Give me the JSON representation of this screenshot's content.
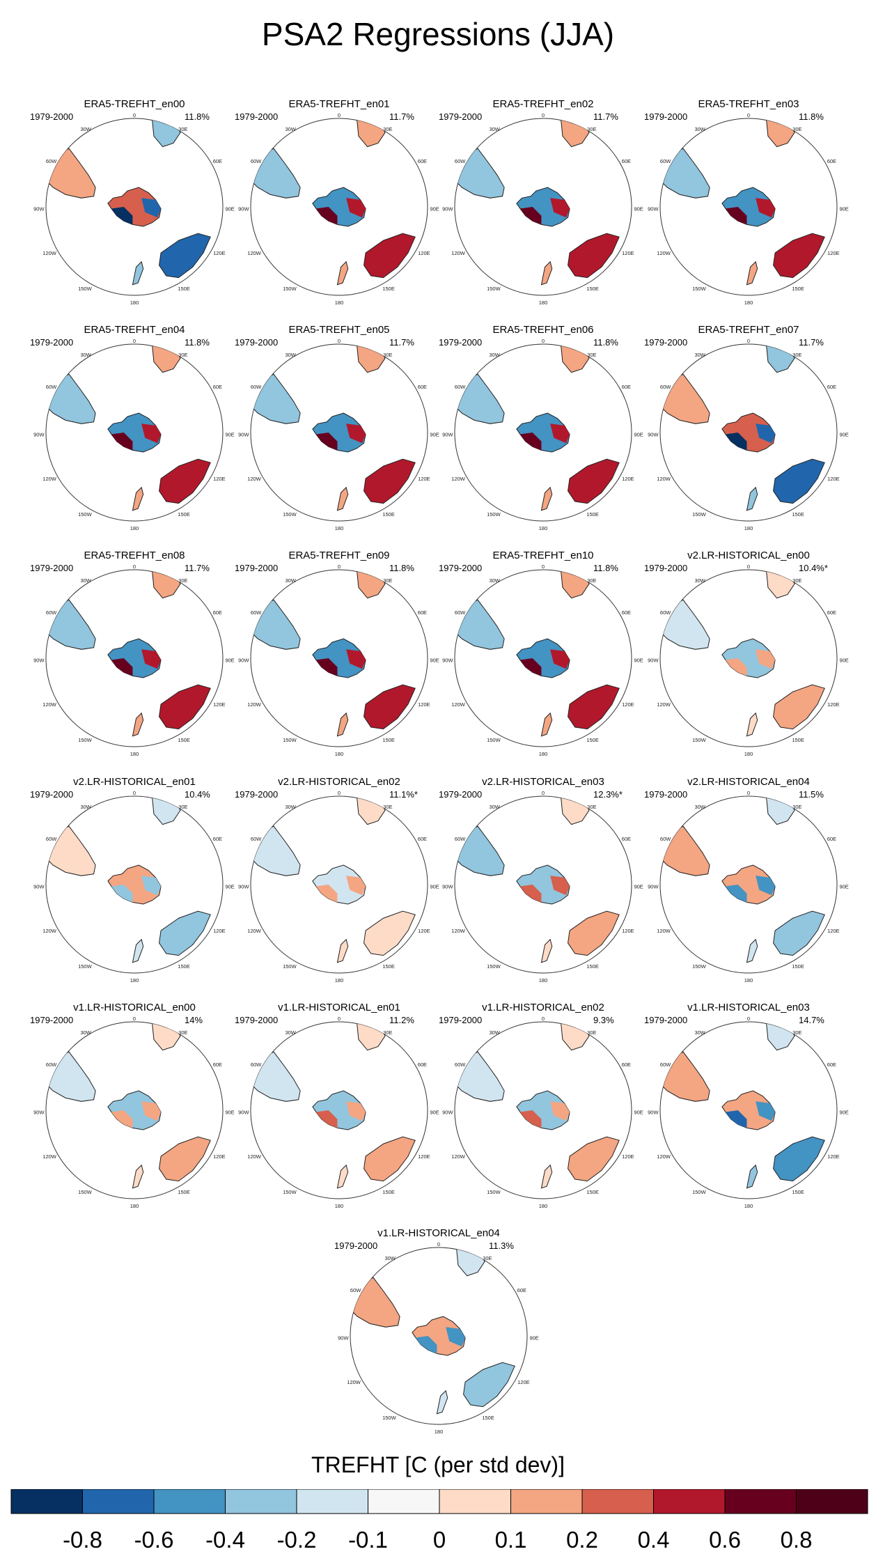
{
  "title": "PSA2 Regressions (JJA)",
  "colors": {
    "land": [
      "#67001f",
      "#b2182b",
      "#d6604d",
      "#f4a582",
      "#fddbc7",
      "#ffffff",
      "#d1e5f0",
      "#92c5de",
      "#4393c3",
      "#2166ac",
      "#053061"
    ],
    "outline": "#222222"
  },
  "map_labels": [
    "0",
    "30E",
    "60E",
    "90E",
    "120E",
    "150E",
    "180",
    "150W",
    "120W",
    "90W",
    "60W",
    "30W"
  ],
  "chart_data": {
    "type": "heatmap",
    "title": "PSA2 Regressions (JJA)",
    "variable_label": "TREFHT [C (per std dev)]",
    "projection": "south polar stereographic",
    "panels": [
      {
        "name": "ERA5-TREFHT_en00",
        "period": "1979-2000",
        "pct": "11.8%",
        "pattern": -1
      },
      {
        "name": "ERA5-TREFHT_en01",
        "period": "1979-2000",
        "pct": "11.7%",
        "pattern": 1
      },
      {
        "name": "ERA5-TREFHT_en02",
        "period": "1979-2000",
        "pct": "11.7%",
        "pattern": 1
      },
      {
        "name": "ERA5-TREFHT_en03",
        "period": "1979-2000",
        "pct": "11.8%",
        "pattern": 1
      },
      {
        "name": "ERA5-TREFHT_en04",
        "period": "1979-2000",
        "pct": "11.8%",
        "pattern": 1
      },
      {
        "name": "ERA5-TREFHT_en05",
        "period": "1979-2000",
        "pct": "11.7%",
        "pattern": 1
      },
      {
        "name": "ERA5-TREFHT_en06",
        "period": "1979-2000",
        "pct": "11.8%",
        "pattern": 1
      },
      {
        "name": "ERA5-TREFHT_en07",
        "period": "1979-2000",
        "pct": "11.7%",
        "pattern": -1
      },
      {
        "name": "ERA5-TREFHT_en08",
        "period": "1979-2000",
        "pct": "11.7%",
        "pattern": 1
      },
      {
        "name": "ERA5-TREFHT_en09",
        "period": "1979-2000",
        "pct": "11.8%",
        "pattern": 1
      },
      {
        "name": "ERA5-TREFHT_en10",
        "period": "1979-2000",
        "pct": "11.8%",
        "pattern": 1
      },
      {
        "name": "v2.LR-HISTORICAL_en00",
        "period": "1979-2000",
        "pct": "10.4%*",
        "pattern": 0.4
      },
      {
        "name": "v2.LR-HISTORICAL_en01",
        "period": "1979-2000",
        "pct": "10.4%",
        "pattern": -0.4
      },
      {
        "name": "v2.LR-HISTORICAL_en02",
        "period": "1979-2000",
        "pct": "11.1%*",
        "pattern": 0.3
      },
      {
        "name": "v2.LR-HISTORICAL_en03",
        "period": "1979-2000",
        "pct": "12.3%*",
        "pattern": 0.6
      },
      {
        "name": "v2.LR-HISTORICAL_en04",
        "period": "1979-2000",
        "pct": "11.5%",
        "pattern": -0.6
      },
      {
        "name": "v1.LR-HISTORICAL_en00",
        "period": "1979-2000",
        "pct": "14%",
        "pattern": 0.4
      },
      {
        "name": "v1.LR-HISTORICAL_en01",
        "period": "1979-2000",
        "pct": "11.2%",
        "pattern": 0.5
      },
      {
        "name": "v1.LR-HISTORICAL_en02",
        "period": "1979-2000",
        "pct": "9.3%",
        "pattern": 0.5
      },
      {
        "name": "v1.LR-HISTORICAL_en03",
        "period": "1979-2000",
        "pct": "14.7%",
        "pattern": -0.7
      },
      {
        "name": "v1.LR-HISTORICAL_en04",
        "period": "1979-2000",
        "pct": "11.3%",
        "pattern": -0.6
      }
    ],
    "colorbar": {
      "ticks": [
        "-0.8",
        "-0.6",
        "-0.4",
        "-0.2",
        "-0.1",
        "0",
        "0.1",
        "0.2",
        "0.4",
        "0.6",
        "0.8"
      ],
      "colors": [
        "#053061",
        "#2166ac",
        "#4393c3",
        "#92c5de",
        "#d1e5f0",
        "#f7f7f7",
        "#fddbc7",
        "#f4a582",
        "#d6604d",
        "#b2182b",
        "#67001f",
        "#4d0018"
      ]
    }
  }
}
